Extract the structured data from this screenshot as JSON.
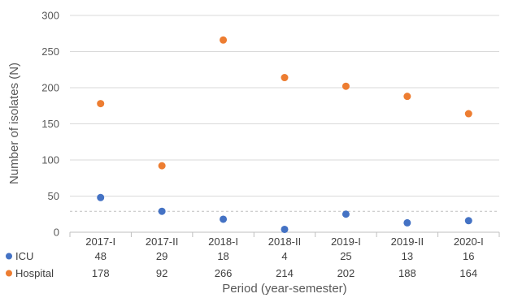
{
  "chart_data": {
    "type": "scatter",
    "categories": [
      "2017-I",
      "2017-II",
      "2018-I",
      "2018-II",
      "2019-I",
      "2019-II",
      "2020-I"
    ],
    "series": [
      {
        "name": "ICU",
        "color": "#4472C4",
        "values": [
          48,
          29,
          18,
          4,
          25,
          13,
          16
        ]
      },
      {
        "name": "Hospital",
        "color": "#ED7D31",
        "values": [
          178,
          92,
          266,
          214,
          202,
          188,
          164
        ]
      }
    ],
    "xlabel": "Period (year-semester)",
    "ylabel": "Number of isolates (N)",
    "ylim": [
      0,
      300
    ],
    "yticks": [
      0,
      50,
      100,
      150,
      200,
      250,
      300
    ],
    "reference_line": 29,
    "grid": true,
    "data_table": true
  }
}
